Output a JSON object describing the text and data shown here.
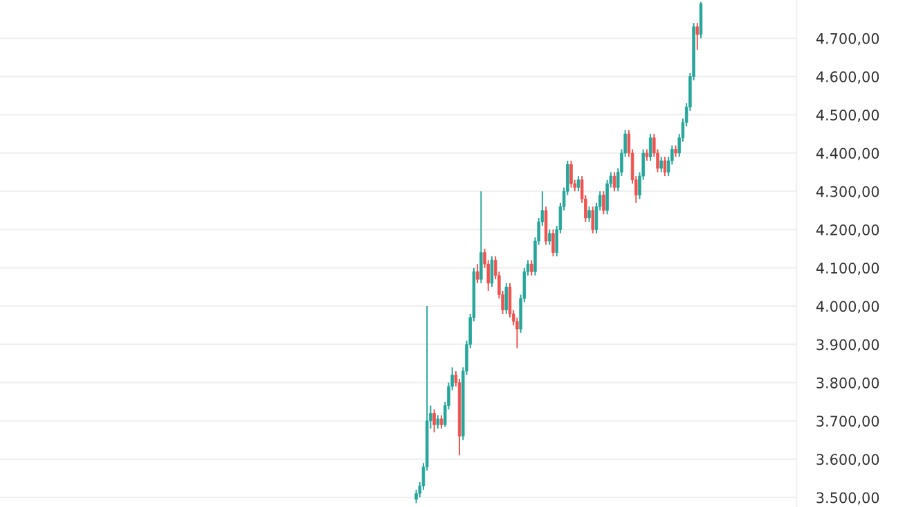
{
  "chart_data": {
    "type": "candlestick",
    "categories": [
      null,
      null,
      null,
      null,
      null,
      null,
      null,
      null,
      null,
      null,
      null,
      null,
      null,
      null,
      null,
      null,
      null,
      null,
      null,
      null,
      null,
      null,
      null,
      null,
      null,
      null,
      null,
      null,
      null,
      null,
      null,
      null,
      null,
      null,
      null,
      null,
      null,
      null,
      null,
      null,
      null,
      null,
      null,
      null,
      null,
      null,
      null,
      null,
      null,
      null,
      null,
      null,
      null,
      null,
      null,
      null,
      null,
      null,
      null,
      null,
      null,
      null,
      null,
      null,
      null,
      null,
      null,
      null,
      null,
      null,
      null,
      null,
      null,
      null,
      null,
      null,
      null,
      null,
      null,
      null,
      null,
      null,
      null,
      null,
      null,
      null,
      null,
      null,
      null,
      null,
      null,
      null,
      null,
      null,
      null,
      null,
      null,
      null,
      null,
      null,
      null,
      null,
      null,
      null,
      null,
      null,
      null,
      null,
      null,
      null,
      null,
      null,
      null,
      null,
      null,
      null,
      null,
      null,
      null,
      null,
      null,
      null,
      null,
      null,
      null,
      null,
      null,
      null,
      null,
      null,
      null,
      null,
      null,
      null,
      null,
      null,
      null,
      null,
      null,
      null,
      null,
      null,
      null,
      null,
      null,
      null,
      null,
      null,
      null,
      null,
      null,
      null,
      null,
      null,
      null,
      null,
      null,
      null,
      null,
      null,
      null,
      null,
      null,
      null,
      null,
      null,
      null,
      null,
      null,
      null,
      null,
      null,
      null,
      null,
      null,
      null,
      null,
      null,
      null,
      null,
      null,
      null,
      null,
      null,
      null,
      null,
      null,
      null,
      null,
      null,
      null,
      null,
      null,
      null,
      null,
      null,
      null,
      null,
      null,
      null,
      null,
      null,
      null,
      null,
      null,
      null,
      null,
      null,
      null,
      null,
      null,
      null,
      null,
      null,
      null,
      null,
      null,
      null,
      null,
      null,
      null
    ],
    "ohlc": [
      null,
      null,
      null,
      null,
      null,
      null,
      null,
      null,
      null,
      null,
      null,
      null,
      null,
      null,
      null,
      null,
      null,
      null,
      null,
      null,
      null,
      null,
      null,
      null,
      null,
      null,
      null,
      null,
      null,
      null,
      null,
      null,
      null,
      null,
      null,
      null,
      null,
      null,
      null,
      null,
      null,
      null,
      null,
      null,
      null,
      null,
      null,
      null,
      null,
      null,
      null,
      null,
      null,
      null,
      null,
      null,
      null,
      null,
      null,
      null,
      null,
      null,
      null,
      null,
      null,
      null,
      null,
      null,
      null,
      null,
      null,
      null,
      null,
      null,
      null,
      null,
      null,
      null,
      null,
      null,
      null,
      null,
      null,
      null,
      null,
      null,
      null,
      null,
      null,
      null,
      null,
      null,
      null,
      null,
      null,
      null,
      null,
      null,
      null,
      null,
      null,
      null,
      null,
      null,
      null,
      null,
      null,
      null,
      null,
      null,
      null,
      null,
      null,
      null,
      null,
      [
        3495,
        3520,
        3485,
        3510
      ],
      [
        3510,
        3540,
        3500,
        3530
      ],
      [
        3530,
        3590,
        3520,
        3580
      ],
      [
        3580,
        4000,
        3570,
        3700
      ],
      [
        3700,
        3740,
        3680,
        3720
      ],
      [
        3720,
        3730,
        3670,
        3690
      ],
      [
        3690,
        3715,
        3680,
        3705
      ],
      [
        3705,
        3715,
        3680,
        3690
      ],
      [
        3690,
        3750,
        3685,
        3740
      ],
      [
        3740,
        3800,
        3730,
        3790
      ],
      [
        3790,
        3840,
        3780,
        3820
      ],
      [
        3820,
        3830,
        3790,
        3800
      ],
      [
        3800,
        3810,
        3610,
        3660
      ],
      [
        3660,
        3840,
        3650,
        3830
      ],
      [
        3830,
        3910,
        3820,
        3900
      ],
      [
        3900,
        3980,
        3890,
        3970
      ],
      [
        3970,
        4100,
        3960,
        4090
      ],
      [
        4090,
        4110,
        4060,
        4070
      ],
      [
        4070,
        4300,
        4060,
        4140
      ],
      [
        4140,
        4150,
        4100,
        4110
      ],
      [
        4110,
        4120,
        4040,
        4060
      ],
      [
        4060,
        4130,
        4050,
        4120
      ],
      [
        4120,
        4130,
        4070,
        4080
      ],
      [
        4080,
        4090,
        4020,
        4030
      ],
      [
        4030,
        4040,
        3980,
        3990
      ],
      [
        3990,
        4060,
        3980,
        4050
      ],
      [
        4050,
        4060,
        3970,
        3980
      ],
      [
        3980,
        3990,
        3950,
        3960
      ],
      [
        3960,
        3970,
        3890,
        3940
      ],
      [
        3940,
        4030,
        3930,
        4020
      ],
      [
        4020,
        4100,
        4010,
        4090
      ],
      [
        4090,
        4120,
        4080,
        4110
      ],
      [
        4110,
        4120,
        4080,
        4090
      ],
      [
        4090,
        4180,
        4080,
        4170
      ],
      [
        4170,
        4230,
        4160,
        4220
      ],
      [
        4220,
        4300,
        4210,
        4250
      ],
      [
        4250,
        4260,
        4160,
        4170
      ],
      [
        4170,
        4200,
        4160,
        4190
      ],
      [
        4190,
        4200,
        4130,
        4140
      ],
      [
        4140,
        4210,
        4130,
        4200
      ],
      [
        4200,
        4270,
        4190,
        4260
      ],
      [
        4260,
        4310,
        4250,
        4300
      ],
      [
        4300,
        4380,
        4290,
        4370
      ],
      [
        4370,
        4380,
        4310,
        4320
      ],
      [
        4320,
        4330,
        4300,
        4310
      ],
      [
        4310,
        4340,
        4300,
        4330
      ],
      [
        4330,
        4340,
        4270,
        4280
      ],
      [
        4280,
        4290,
        4220,
        4230
      ],
      [
        4230,
        4260,
        4220,
        4250
      ],
      [
        4250,
        4260,
        4190,
        4200
      ],
      [
        4200,
        4270,
        4190,
        4260
      ],
      [
        4260,
        4300,
        4250,
        4290
      ],
      [
        4290,
        4300,
        4240,
        4250
      ],
      [
        4250,
        4330,
        4240,
        4320
      ],
      [
        4320,
        4350,
        4310,
        4340
      ],
      [
        4340,
        4350,
        4300,
        4310
      ],
      [
        4310,
        4360,
        4300,
        4350
      ],
      [
        4350,
        4410,
        4340,
        4400
      ],
      [
        4400,
        4460,
        4390,
        4450
      ],
      [
        4450,
        4460,
        4390,
        4400
      ],
      [
        4400,
        4410,
        4320,
        4330
      ],
      [
        4330,
        4340,
        4270,
        4290
      ],
      [
        4290,
        4350,
        4280,
        4340
      ],
      [
        4340,
        4410,
        4330,
        4400
      ],
      [
        4400,
        4410,
        4380,
        4390
      ],
      [
        4390,
        4450,
        4380,
        4440
      ],
      [
        4440,
        4450,
        4390,
        4400
      ],
      [
        4400,
        4410,
        4350,
        4360
      ],
      [
        4360,
        4390,
        4350,
        4380
      ],
      [
        4380,
        4390,
        4340,
        4350
      ],
      [
        4350,
        4390,
        4340,
        4380
      ],
      [
        4380,
        4420,
        4370,
        4410
      ],
      [
        4410,
        4420,
        4390,
        4400
      ],
      [
        4400,
        4450,
        4390,
        4440
      ],
      [
        4440,
        4490,
        4430,
        4480
      ],
      [
        4480,
        4530,
        4470,
        4520
      ],
      [
        4520,
        4610,
        4510,
        4600
      ],
      [
        4600,
        4740,
        4590,
        4730
      ],
      [
        4730,
        4740,
        4670,
        4710
      ],
      [
        4710,
        4795,
        4700,
        4790
      ],
      null,
      null,
      null,
      null,
      null,
      null,
      null,
      null,
      null,
      null,
      null,
      null,
      null,
      null,
      null,
      null,
      null,
      null,
      null,
      null,
      null,
      null,
      null,
      null,
      null,
      null
    ],
    "colors": [
      null,
      null,
      null,
      null,
      null,
      null,
      null,
      null,
      null,
      null,
      null,
      null,
      null,
      null,
      null,
      null,
      null,
      null,
      null,
      null,
      null,
      null,
      null,
      null,
      null,
      null,
      null,
      null,
      null,
      null,
      null,
      null,
      null,
      null,
      null,
      null,
      null,
      null,
      null,
      null,
      null,
      null,
      null,
      null,
      null,
      null,
      null,
      null,
      null,
      null,
      null,
      null,
      null,
      null,
      null,
      null,
      null,
      null,
      null,
      null,
      null,
      null,
      null,
      null,
      null,
      null,
      null,
      null,
      null,
      null,
      null,
      null,
      null,
      null,
      null,
      null,
      null,
      null,
      null,
      null,
      null,
      null,
      null,
      null,
      null,
      null,
      null,
      null,
      null,
      null,
      null,
      null,
      null,
      null,
      null,
      null,
      null,
      null,
      null,
      null,
      null,
      null,
      null,
      null,
      null,
      null,
      null,
      null,
      null,
      null,
      null,
      null,
      null,
      null,
      null,
      "#26a69a",
      "#26a69a",
      "#26a69a",
      "#26a69a",
      "#26a69a",
      "#ef5350",
      "#26a69a",
      "#ef5350",
      "#26a69a",
      "#26a69a",
      "#26a69a",
      "#ef5350",
      "#ef5350",
      "#26a69a",
      "#26a69a",
      "#26a69a",
      "#26a69a",
      "#ef5350",
      "#26a69a",
      "#ef5350",
      "#ef5350",
      "#26a69a",
      "#ef5350",
      "#ef5350",
      "#ef5350",
      "#26a69a",
      "#ef5350",
      "#ef5350",
      "#ef5350",
      "#26a69a",
      "#26a69a",
      "#26a69a",
      "#ef5350",
      "#26a69a",
      "#26a69a",
      "#26a69a",
      "#ef5350",
      "#26a69a",
      "#ef5350",
      "#26a69a",
      "#26a69a",
      "#26a69a",
      "#26a69a",
      "#ef5350",
      "#ef5350",
      "#26a69a",
      "#ef5350",
      "#ef5350",
      "#26a69a",
      "#ef5350",
      "#26a69a",
      "#26a69a",
      "#ef5350",
      "#26a69a",
      "#26a69a",
      "#ef5350",
      "#26a69a",
      "#26a69a",
      "#26a69a",
      "#ef5350",
      "#ef5350",
      "#ef5350",
      "#26a69a",
      "#26a69a",
      "#ef5350",
      "#26a69a",
      "#ef5350",
      "#ef5350",
      "#26a69a",
      "#ef5350",
      "#26a69a",
      "#26a69a",
      "#ef5350",
      "#26a69a",
      "#26a69a",
      "#26a69a",
      "#26a69a",
      "#26a69a",
      "#ef5350",
      "#26a69a",
      null,
      null,
      null,
      null,
      null,
      null,
      null,
      null,
      null,
      null,
      null,
      null,
      null,
      null,
      null,
      null,
      null,
      null,
      null,
      null,
      null,
      null,
      null,
      null,
      null,
      null
    ],
    "ylim": [
      3475,
      4800
    ],
    "yticks": [
      {
        "value": 3500,
        "label": "3.500,00"
      },
      {
        "value": 3600,
        "label": "3.600,00"
      },
      {
        "value": 3700,
        "label": "3.700,00"
      },
      {
        "value": 3800,
        "label": "3.800,00"
      },
      {
        "value": 3900,
        "label": "3.900,00"
      },
      {
        "value": 4000,
        "label": "4.000,00"
      },
      {
        "value": 4100,
        "label": "4.100,00"
      },
      {
        "value": 4200,
        "label": "4.200,00"
      },
      {
        "value": 4300,
        "label": "4.300,00"
      },
      {
        "value": 4400,
        "label": "4.400,00"
      },
      {
        "value": 4500,
        "label": "4.500,00"
      },
      {
        "value": 4600,
        "label": "4.600,00"
      },
      {
        "value": 4700,
        "label": "4.700,00"
      }
    ],
    "grid": "y",
    "tick_labels": "y"
  }
}
